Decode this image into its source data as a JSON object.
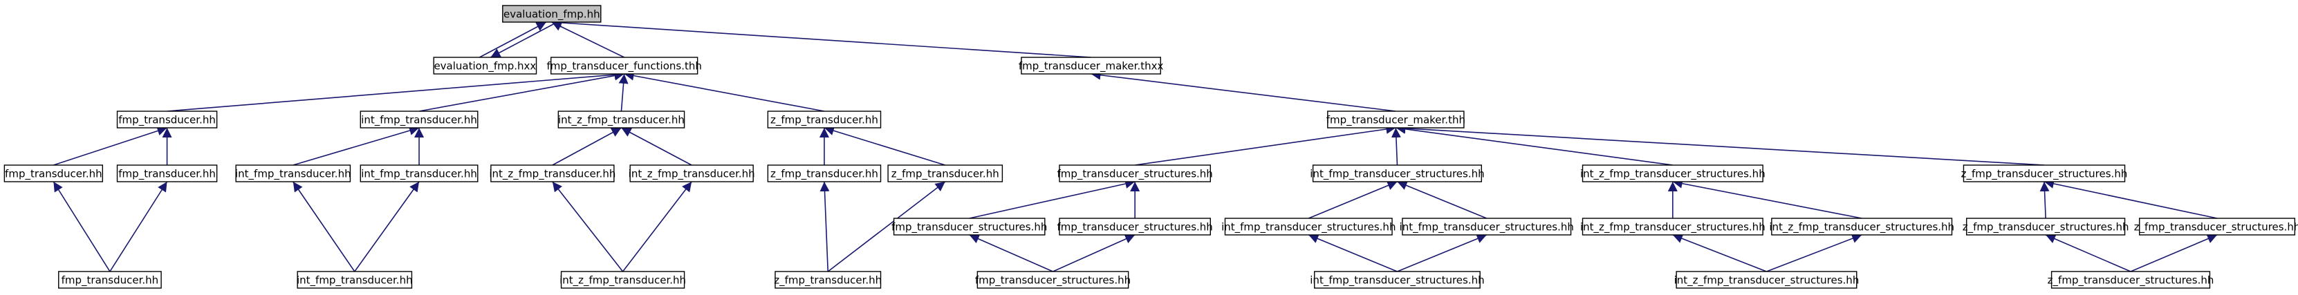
{
  "nodes": [
    {
      "label": "evaluation_fmp.hh"
    },
    {
      "label": "evaluation_fmp.hxx"
    },
    {
      "label": "fmp_transducer_functions.thh"
    },
    {
      "label": "fmp_transducer_maker.thxx"
    },
    {
      "label": "fmp_transducer.hh"
    },
    {
      "label": "int_fmp_transducer.hh"
    },
    {
      "label": "int_z_fmp_transducer.hh"
    },
    {
      "label": "z_fmp_transducer.hh"
    },
    {
      "label": "fmp_transducer_maker.thh"
    },
    {
      "label": "fmp_transducer.hh"
    },
    {
      "label": "fmp_transducer.hh"
    },
    {
      "label": "int_fmp_transducer.hh"
    },
    {
      "label": "int_fmp_transducer.hh"
    },
    {
      "label": "int_z_fmp_transducer.hh"
    },
    {
      "label": "int_z_fmp_transducer.hh"
    },
    {
      "label": "z_fmp_transducer.hh"
    },
    {
      "label": "z_fmp_transducer.hh"
    },
    {
      "label": "fmp_transducer_structures.hh"
    },
    {
      "label": "int_fmp_transducer_structures.hh"
    },
    {
      "label": "int_z_fmp_transducer_structures.hh"
    },
    {
      "label": "z_fmp_transducer_structures.hh"
    },
    {
      "label": "fmp_transducer_structures.hh"
    },
    {
      "label": "fmp_transducer_structures.hh"
    },
    {
      "label": "int_fmp_transducer_structures.hh"
    },
    {
      "label": "int_fmp_transducer_structures.hh"
    },
    {
      "label": "int_z_fmp_transducer_structures.hh"
    },
    {
      "label": "int_z_fmp_transducer_structures.hh"
    },
    {
      "label": "z_fmp_transducer_structures.hh"
    },
    {
      "label": "z_fmp_transducer_structures.hh"
    },
    {
      "label": "fmp_transducer.hh"
    },
    {
      "label": "int_fmp_transducer.hh"
    },
    {
      "label": "int_z_fmp_transducer.hh"
    },
    {
      "label": "z_fmp_transducer.hh"
    },
    {
      "label": "fmp_transducer_structures.hh"
    },
    {
      "label": "int_fmp_transducer_structures.hh"
    },
    {
      "label": "int_z_fmp_transducer_structures.hh"
    },
    {
      "label": "z_fmp_transducer_structures.hh"
    }
  ]
}
